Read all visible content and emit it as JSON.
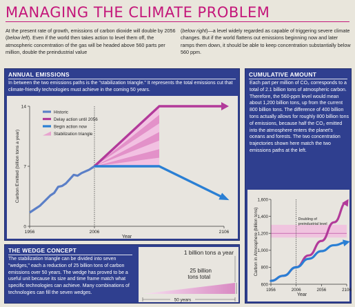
{
  "header": {
    "title": "MANAGING THE CLIMATE PROBLEM",
    "intro_left_1": "At the present rate of growth, emissions of carbon dioxide will double by 2056 (",
    "intro_left_em": "below left",
    "intro_left_2": "). Even if the world then takes action to level them off, the atmospheric concentration of the gas will be headed above 560 parts per million, double the preindustrial value",
    "intro_right_em": "below right",
    "intro_right_1": ")—a level widely regarded as capable of triggering severe climate changes. But if the world flattens out emissions beginning now and later ramps them down, it should be able to keep concentration substantially below 560 ppm.",
    "intro_right_open": "("
  },
  "annual": {
    "title": "ANNUAL EMISSIONS",
    "text": "In between the two emissions paths is the \"stabilization triangle.\" It represents the total emissions cut that climate-friendly technologies must achieve in the coming 50 years."
  },
  "cumulative": {
    "title": "CUMULATIVE AMOUNT",
    "text": "Each part per million of CO₂ corresponds to a total of 2.1 billion tons of atmospheric carbon. Therefore, the 560-ppm level would mean about 1,200 billion tons, up from the current 800 billion tons. The difference of 400 billion tons actually allows for roughly 800 billion tons of emissions, because half the CO₂ emitted into the atmosphere enters the planet's oceans and forests. The two concentration trajectories shown here match the two emissions paths at the left."
  },
  "wedge": {
    "title": "THE WEDGE CONCEPT",
    "text": "The stabilization triangle can be divided into seven \"wedges,\" each a reduction of 25 billion tons of carbon emissions over 50 years. The wedge has proved to be a useful unit because its size and time frame match what specific technologies can achieve. Many combinations of technologies can fill the seven wedges.",
    "label_rate": "1 billion tons a year",
    "label_total_1": "25 billion",
    "label_total_2": "tons total",
    "label_span": "50 years"
  },
  "chart_data": [
    {
      "type": "line",
      "xlabel": "Year",
      "ylabel": "Carbon Emitted (billion tons a year)",
      "xlim": [
        1956,
        2106
      ],
      "ylim": [
        0,
        14
      ],
      "xticks": [
        "1956",
        "2006",
        "2106"
      ],
      "yticks": [
        "0",
        "7",
        "14"
      ],
      "legend": [
        "Historic",
        "Delay action until 2056",
        "Begin action now",
        "Stabilization triangle"
      ],
      "legend_position": "top-left",
      "colors": {
        "historic": "#5b7fc7",
        "delay": "#b23a9a",
        "begin": "#2a7fd4",
        "triangle": "#e8a3cf"
      },
      "series": [
        {
          "name": "Historic",
          "x": [
            1956,
            1960,
            1964,
            1968,
            1972,
            1975,
            1978,
            1981,
            1984,
            1987,
            1990,
            1993,
            1996,
            1999,
            2002,
            2006
          ],
          "y": [
            1.6,
            2.0,
            2.4,
            3.0,
            3.6,
            3.9,
            4.6,
            4.7,
            5.0,
            5.5,
            6.0,
            5.9,
            6.2,
            6.4,
            6.6,
            7.0
          ]
        },
        {
          "name": "Delay action until 2056",
          "x": [
            2006,
            2056,
            2106
          ],
          "y": [
            7,
            14,
            14
          ]
        },
        {
          "name": "Begin action now",
          "x": [
            2006,
            2056,
            2106
          ],
          "y": [
            7,
            7,
            3.3
          ]
        }
      ]
    },
    {
      "type": "line",
      "xlabel": "Year",
      "ylabel": "Carbon in Atmosphere (billion tons)",
      "xlim": [
        1956,
        2106
      ],
      "ylim": [
        600,
        1600
      ],
      "xticks": [
        "1956",
        "2006",
        "2056",
        "2106"
      ],
      "yticks": [
        "600",
        "800",
        "1,000",
        "1,200",
        "1,400",
        "1,600"
      ],
      "annotation": "Doubling of preindustrial level",
      "annotation_1": "Doubling of",
      "annotation_2": "preindustrial level",
      "series": [
        {
          "name": "Delay action until 2056",
          "x": [
            1956,
            1981,
            2006,
            2031,
            2056,
            2081,
            2106
          ],
          "y": [
            640,
            700,
            800,
            940,
            1110,
            1330,
            1570
          ]
        },
        {
          "name": "Begin action now",
          "x": [
            1956,
            1981,
            2006,
            2031,
            2056,
            2081,
            2106
          ],
          "y": [
            640,
            700,
            800,
            900,
            990,
            1060,
            1095
          ]
        }
      ]
    }
  ]
}
